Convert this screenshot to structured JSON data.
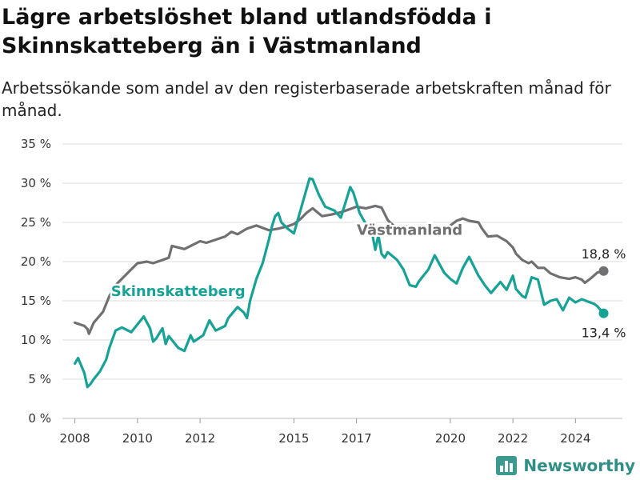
{
  "title": "Lägre arbetslöshet bland utlandsfödda i Skinnskatteberg än i Västmanland",
  "subtitle": "Arbetssökande som andel av den registerbaserade arbetskraften månad för månad.",
  "brand": {
    "name": "Newsworthy",
    "icon": "bar-chart-logo-icon",
    "color": "#3a9a8f"
  },
  "chart_data": {
    "type": "line",
    "xlabel": "",
    "ylabel": "",
    "ylim": [
      0,
      35
    ],
    "yticks": [
      "0 %",
      "5 %",
      "10 %",
      "15 %",
      "20 %",
      "25 %",
      "30 %",
      "35 %"
    ],
    "ytick_values": [
      0,
      5,
      10,
      15,
      20,
      25,
      30,
      35
    ],
    "xlim": [
      2007.6,
      2025.5
    ],
    "xticks": [
      "2008",
      "2010",
      "2012",
      "2015",
      "2017",
      "2020",
      "2022",
      "2024"
    ],
    "xtick_values": [
      2008,
      2010,
      2012,
      2015,
      2017,
      2020,
      2022,
      2024
    ],
    "grid": true,
    "series": [
      {
        "name": "Västmanland",
        "color": "#707073",
        "label_x": 2018.7,
        "label_y": 23.4,
        "end_label": "18,8 %",
        "x": [
          2008.0,
          2008.3,
          2008.4,
          2008.45,
          2008.6,
          2008.9,
          2009.1,
          2009.3,
          2009.6,
          2009.8,
          2010.0,
          2010.3,
          2010.5,
          2010.8,
          2011.0,
          2011.1,
          2011.5,
          2011.8,
          2012.0,
          2012.2,
          2012.5,
          2012.8,
          2013.0,
          2013.2,
          2013.5,
          2013.8,
          2014.0,
          2014.2,
          2014.5,
          2014.8,
          2015.0,
          2015.2,
          2015.4,
          2015.6,
          2015.9,
          2016.2,
          2016.5,
          2016.8,
          2017.0,
          2017.3,
          2017.6,
          2017.8,
          2018.0,
          2018.1,
          2018.3,
          2018.5,
          2018.8,
          2019.0,
          2019.3,
          2019.6,
          2019.8,
          2020.0,
          2020.2,
          2020.4,
          2020.6,
          2020.9,
          2021.0,
          2021.2,
          2021.5,
          2021.8,
          2022.0,
          2022.1,
          2022.3,
          2022.5,
          2022.6,
          2022.8,
          2023.0,
          2023.2,
          2023.5,
          2023.8,
          2024.0,
          2024.2,
          2024.3,
          2024.5,
          2024.7,
          2024.9
        ],
        "y": [
          12.2,
          11.8,
          11.4,
          10.8,
          12.2,
          13.6,
          15.6,
          17.0,
          18.2,
          19.0,
          19.8,
          20.0,
          19.8,
          20.2,
          20.5,
          22.0,
          21.6,
          22.2,
          22.6,
          22.4,
          22.8,
          23.2,
          23.8,
          23.5,
          24.2,
          24.6,
          24.3,
          24.0,
          24.2,
          24.5,
          24.8,
          25.4,
          26.2,
          26.8,
          25.8,
          26.0,
          26.3,
          26.7,
          27.0,
          26.8,
          27.1,
          26.9,
          25.3,
          24.9,
          24.2,
          24.5,
          24.4,
          24.1,
          24.0,
          23.8,
          24.1,
          24.6,
          25.2,
          25.5,
          25.2,
          25.0,
          24.3,
          23.2,
          23.3,
          22.6,
          21.8,
          21.0,
          20.2,
          19.8,
          20.0,
          19.2,
          19.2,
          18.5,
          18.0,
          17.8,
          18.0,
          17.7,
          17.3,
          17.9,
          18.6,
          18.8
        ]
      },
      {
        "name": "Skinnskatteberg",
        "color": "#17a295",
        "label_x": 2011.3,
        "label_y": 15.6,
        "end_label": "13,4 %",
        "x": [
          2008.0,
          2008.1,
          2008.3,
          2008.4,
          2008.5,
          2008.6,
          2008.8,
          2009.0,
          2009.1,
          2009.3,
          2009.5,
          2009.8,
          2010.0,
          2010.2,
          2010.4,
          2010.5,
          2010.6,
          2010.8,
          2010.9,
          2011.0,
          2011.3,
          2011.5,
          2011.7,
          2011.8,
          2012.1,
          2012.3,
          2012.5,
          2012.8,
          2012.9,
          2013.2,
          2013.4,
          2013.5,
          2013.6,
          2013.8,
          2014.0,
          2014.2,
          2014.3,
          2014.4,
          2014.5,
          2014.6,
          2014.8,
          2015.0,
          2015.2,
          2015.5,
          2015.6,
          2015.8,
          2016.0,
          2016.3,
          2016.5,
          2016.8,
          2016.9,
          2017.1,
          2017.3,
          2017.5,
          2017.6,
          2017.7,
          2017.8,
          2017.9,
          2018.0,
          2018.3,
          2018.5,
          2018.7,
          2018.9,
          2019.0,
          2019.3,
          2019.5,
          2019.8,
          2020.0,
          2020.2,
          2020.4,
          2020.6,
          2020.9,
          2021.1,
          2021.3,
          2021.6,
          2021.8,
          2022.0,
          2022.1,
          2022.3,
          2022.4,
          2022.6,
          2022.8,
          2023.0,
          2023.2,
          2023.4,
          2023.6,
          2023.8,
          2024.0,
          2024.2,
          2024.4,
          2024.6,
          2024.7,
          2024.9
        ],
        "y": [
          7.0,
          7.7,
          5.8,
          4.0,
          4.4,
          5.0,
          6.0,
          7.5,
          9.0,
          11.2,
          11.6,
          11.0,
          12.0,
          13.0,
          11.5,
          9.8,
          10.2,
          11.5,
          9.5,
          10.5,
          9.0,
          8.6,
          10.6,
          9.8,
          10.6,
          12.5,
          11.2,
          11.8,
          12.8,
          14.2,
          13.5,
          12.8,
          15.0,
          17.8,
          19.8,
          22.8,
          24.5,
          25.8,
          26.2,
          25.0,
          24.2,
          23.6,
          26.4,
          30.6,
          30.5,
          28.5,
          27.0,
          26.5,
          25.6,
          29.5,
          28.8,
          26.2,
          24.8,
          23.6,
          21.5,
          23.4,
          21.0,
          20.5,
          21.2,
          20.2,
          19.0,
          17.0,
          16.8,
          17.5,
          19.0,
          20.8,
          18.6,
          17.8,
          17.2,
          19.2,
          20.6,
          18.2,
          17.0,
          16.0,
          17.4,
          16.4,
          18.2,
          16.5,
          15.6,
          15.4,
          18.0,
          17.7,
          14.5,
          15.0,
          15.2,
          13.8,
          15.4,
          14.8,
          15.2,
          14.9,
          14.6,
          14.3,
          13.4
        ]
      }
    ]
  }
}
